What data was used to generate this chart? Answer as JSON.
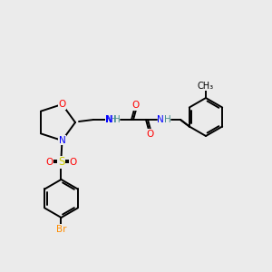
{
  "bg_color": "#ebebeb",
  "bond_color": "#000000",
  "colors": {
    "O": "#ff0000",
    "N": "#0000ff",
    "S": "#cccc00",
    "Br": "#ff8c00",
    "C": "#000000",
    "H": "#4a9090"
  },
  "lw": 1.4,
  "fs": 7.5
}
